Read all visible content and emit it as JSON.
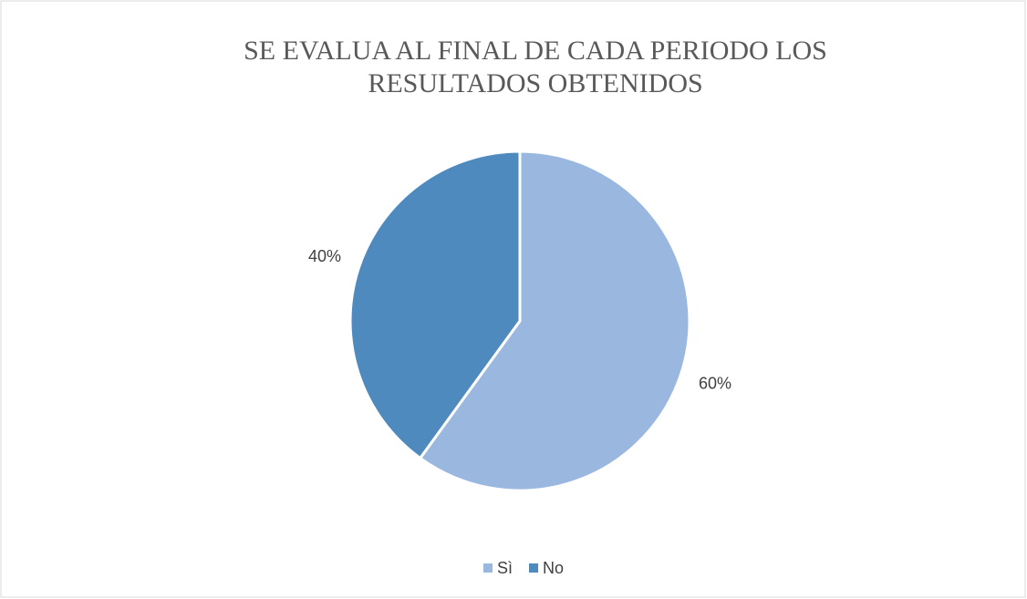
{
  "chart_data": {
    "type": "pie",
    "title": "SE EVALUA AL FINAL DE CADA PERIODO LOS RESULTADOS OBTENIDOS",
    "categories": [
      "Sì",
      "No"
    ],
    "values": [
      60,
      40
    ],
    "value_labels": [
      "60%",
      "40%"
    ],
    "colors": [
      "#9ab8df",
      "#4f8abf"
    ],
    "legend": "bottom"
  }
}
